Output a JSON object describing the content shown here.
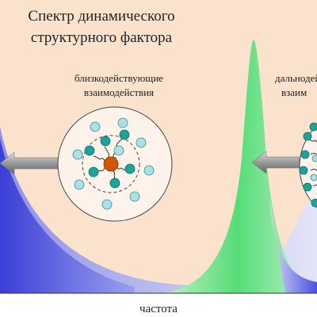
{
  "title": {
    "line1": "Спектр динамического",
    "line2": "структурного фактора"
  },
  "left_label": {
    "line1": "близкодействующие",
    "line2": "взаимодействия"
  },
  "right_label": {
    "line1": "дальнодейс",
    "line2": "взаим"
  },
  "x_axis_label": "частота"
}
